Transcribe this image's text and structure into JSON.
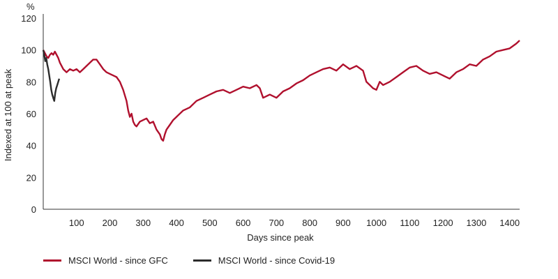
{
  "chart_data": {
    "type": "line",
    "unit_label": "%",
    "xlabel": "Days since peak",
    "ylabel": "Indexed at 100 at peak",
    "xlim": [
      0,
      1430
    ],
    "ylim": [
      0,
      120
    ],
    "xticks": [
      100,
      200,
      300,
      400,
      500,
      600,
      700,
      800,
      900,
      1000,
      1100,
      1200,
      1300,
      1400
    ],
    "yticks": [
      0,
      20,
      40,
      60,
      80,
      100,
      120
    ],
    "series": [
      {
        "name": "MSCI World - since GFC",
        "color": "#b0102d",
        "x": [
          0,
          5,
          10,
          15,
          20,
          25,
          30,
          35,
          40,
          45,
          50,
          60,
          70,
          80,
          90,
          100,
          110,
          120,
          130,
          140,
          150,
          160,
          170,
          180,
          190,
          200,
          210,
          220,
          230,
          240,
          250,
          255,
          260,
          265,
          270,
          275,
          280,
          290,
          300,
          310,
          320,
          330,
          340,
          350,
          355,
          360,
          365,
          370,
          380,
          390,
          400,
          420,
          440,
          460,
          480,
          500,
          520,
          540,
          560,
          580,
          600,
          620,
          640,
          650,
          660,
          680,
          700,
          720,
          740,
          760,
          780,
          800,
          820,
          840,
          860,
          880,
          900,
          920,
          940,
          960,
          970,
          980,
          990,
          1000,
          1010,
          1020,
          1040,
          1060,
          1080,
          1100,
          1120,
          1140,
          1160,
          1180,
          1200,
          1220,
          1240,
          1260,
          1280,
          1300,
          1320,
          1340,
          1360,
          1380,
          1400,
          1420,
          1430
        ],
        "values": [
          100,
          98,
          96,
          95,
          97,
          98,
          97,
          99,
          97,
          95,
          92,
          88,
          86,
          88,
          87,
          88,
          86,
          88,
          90,
          92,
          94,
          94,
          91,
          88,
          86,
          85,
          84,
          83,
          80,
          75,
          68,
          62,
          58,
          60,
          55,
          53,
          52,
          55,
          56,
          57,
          54,
          55,
          50,
          47,
          44,
          43,
          47,
          50,
          53,
          56,
          58,
          62,
          64,
          68,
          70,
          72,
          74,
          75,
          73,
          75,
          77,
          76,
          78,
          76,
          70,
          72,
          70,
          74,
          76,
          79,
          81,
          84,
          86,
          88,
          89,
          87,
          91,
          88,
          90,
          87,
          80,
          78,
          76,
          75,
          80,
          78,
          80,
          83,
          86,
          89,
          90,
          87,
          85,
          86,
          84,
          82,
          86,
          88,
          91,
          90,
          94,
          96,
          99,
          100,
          101,
          104,
          106
        ]
      },
      {
        "name": "MSCI World - since Covid-19",
        "color": "#2b2b2b",
        "x": [
          0,
          3,
          6,
          9,
          12,
          15,
          18,
          21,
          24,
          27,
          30,
          33,
          36,
          39,
          42,
          45,
          48
        ],
        "values": [
          100,
          97,
          93,
          95,
          91,
          88,
          84,
          80,
          75,
          72,
          70,
          68,
          73,
          76,
          78,
          80,
          82
        ]
      }
    ]
  },
  "legend": [
    {
      "label": "MSCI World - since GFC",
      "color": "#b0102d"
    },
    {
      "label": "MSCI World - since Covid-19",
      "color": "#2b2b2b"
    }
  ]
}
